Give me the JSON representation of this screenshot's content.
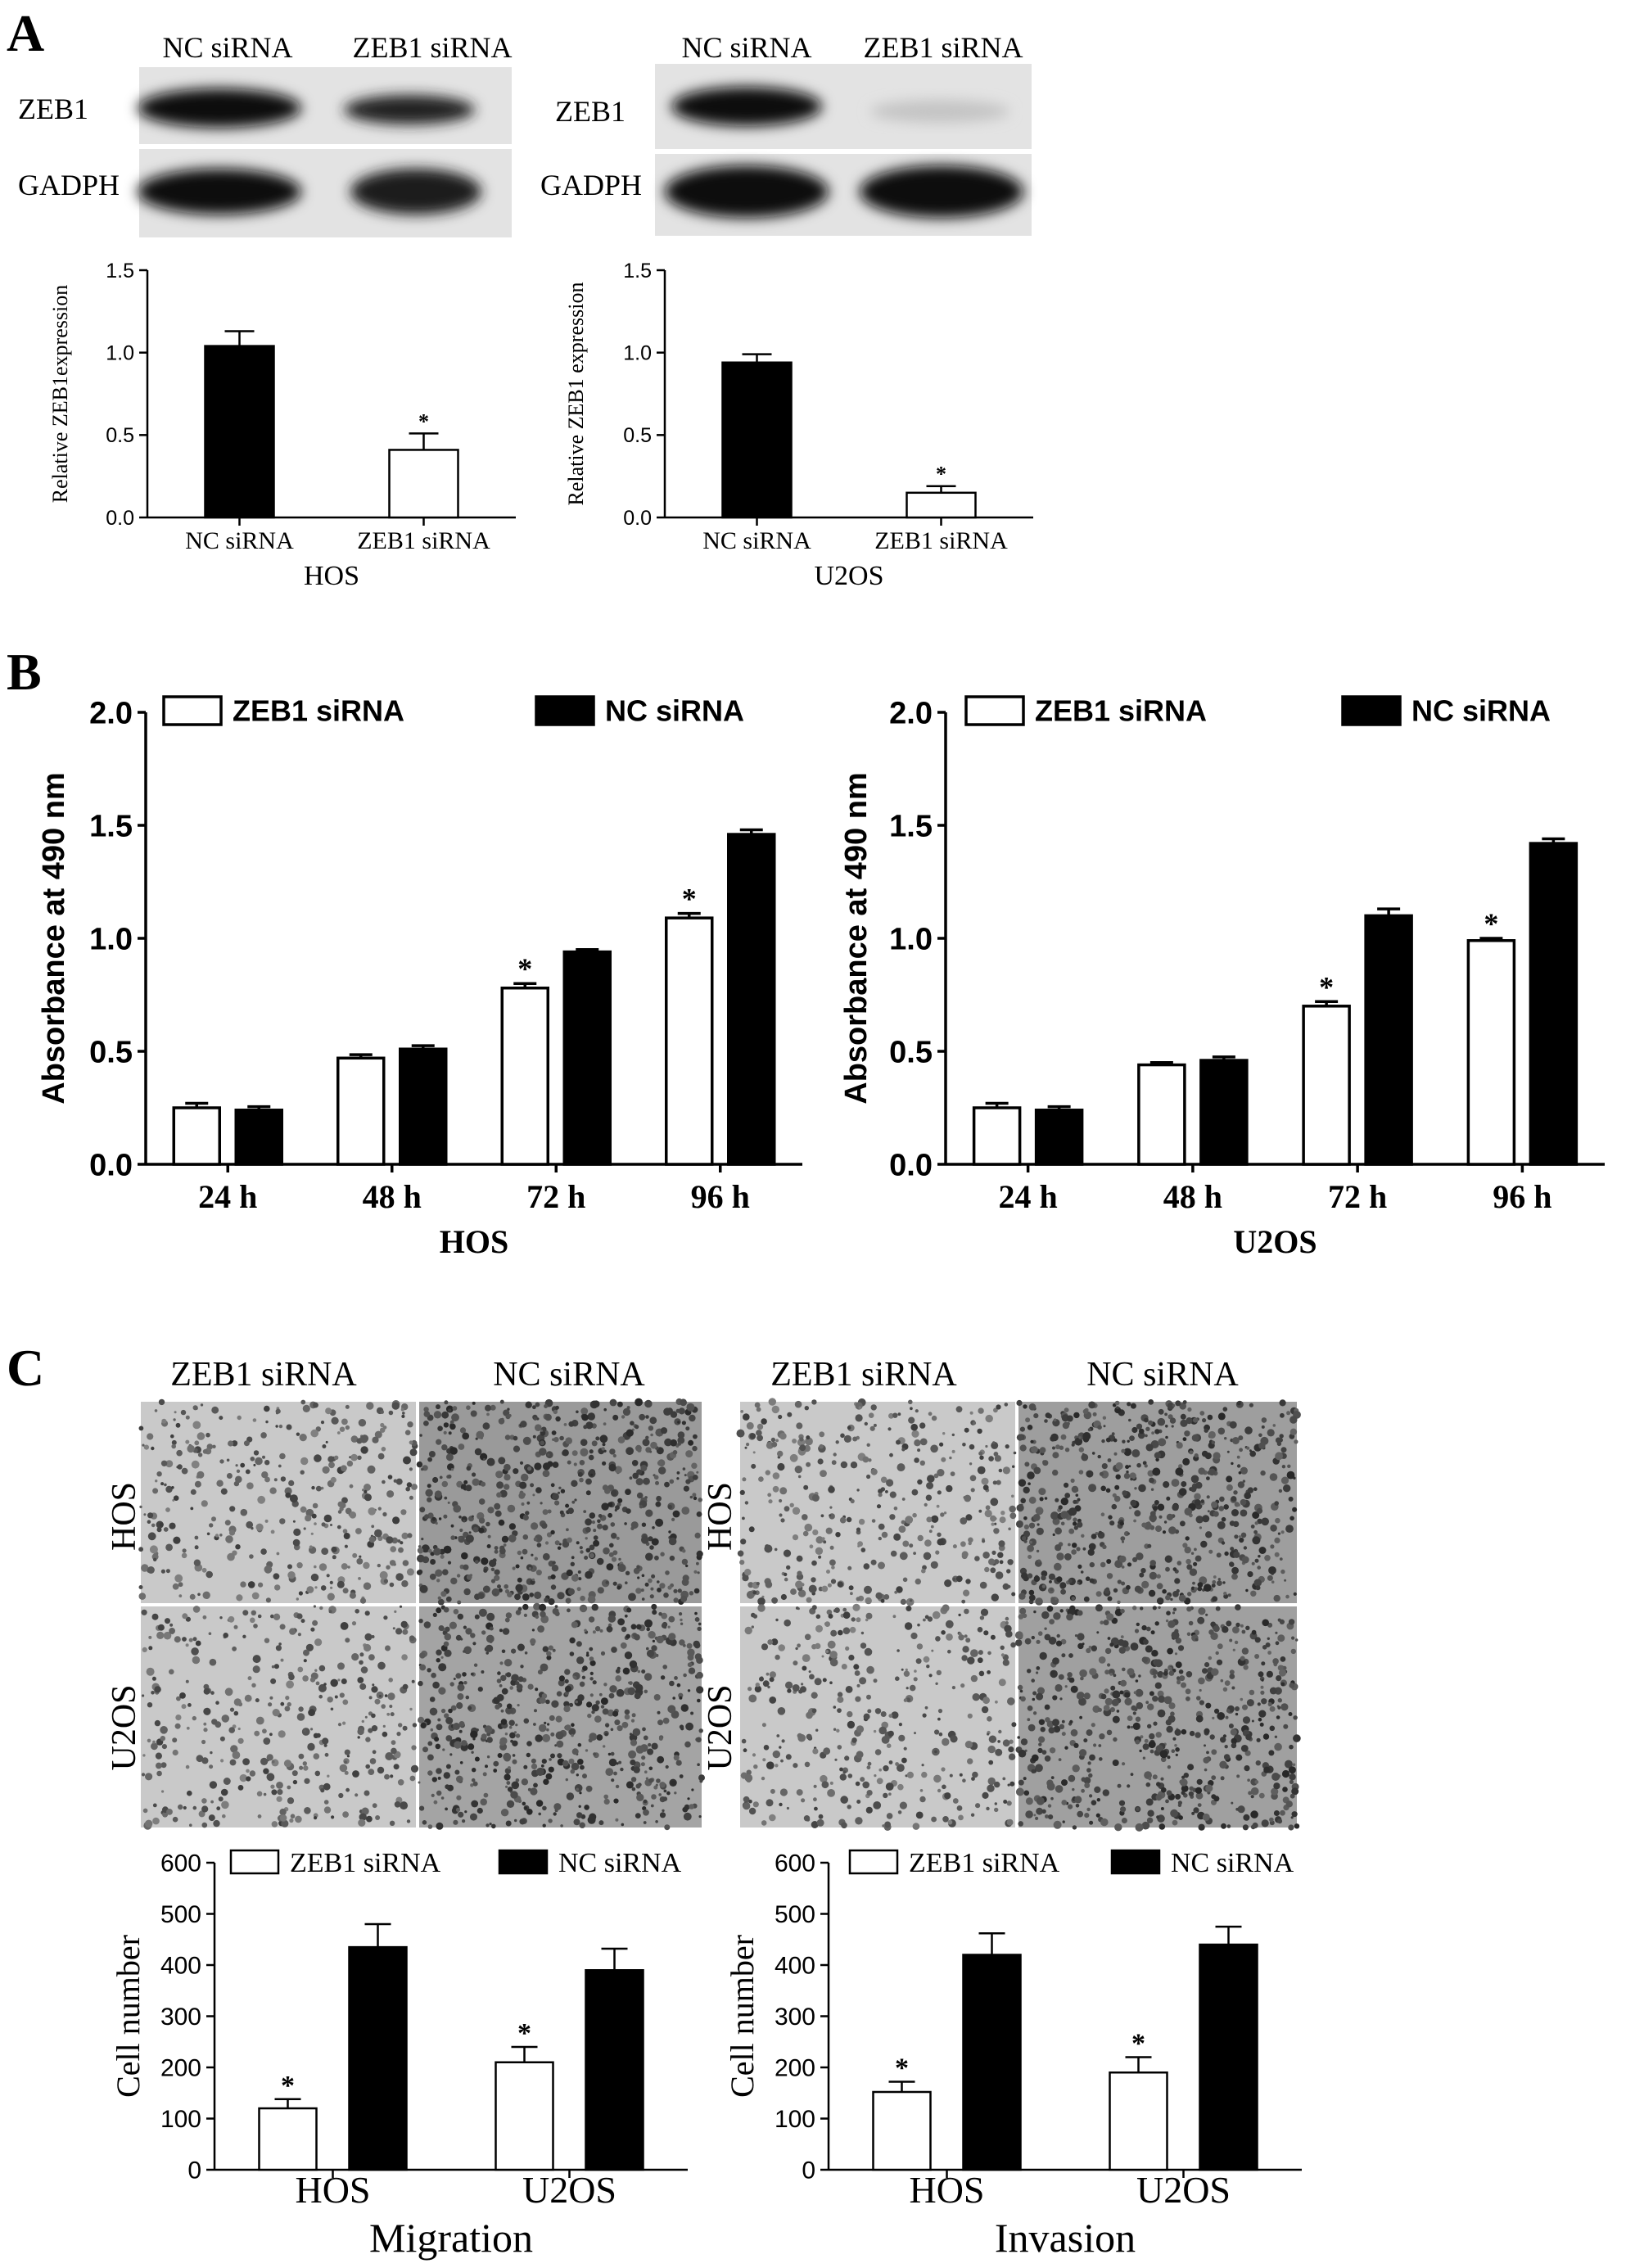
{
  "panel_letters": [
    "A",
    "B",
    "C"
  ],
  "blots": {
    "lanes": [
      "NC siRNA",
      "ZEB1 siRNA"
    ],
    "rows": [
      "ZEB1",
      "GADPH"
    ],
    "cells": [
      "HOS",
      "U2OS"
    ]
  },
  "micrographs": {
    "columns": [
      "ZEB1 siRNA",
      "NC siRNA"
    ],
    "rows": [
      "HOS",
      "U2OS"
    ]
  },
  "chart_data": [
    {
      "id": "A1",
      "type": "bar",
      "categories": [
        "NC siRNA",
        "ZEB1 siRNA"
      ],
      "values": [
        1.04,
        0.41
      ],
      "errors": [
        0.09,
        0.1
      ],
      "fills": [
        "#000000",
        "#ffffff"
      ],
      "sig": [
        "",
        "*"
      ],
      "xlabel": "HOS",
      "ylabel": "Relative ZEB1expression",
      "ylim": [
        0,
        1.5
      ],
      "yticks": [
        "0.0",
        "0.5",
        "1.0",
        "1.5"
      ]
    },
    {
      "id": "A2",
      "type": "bar",
      "categories": [
        "NC siRNA",
        "ZEB1 siRNA"
      ],
      "values": [
        0.94,
        0.15
      ],
      "errors": [
        0.05,
        0.04
      ],
      "fills": [
        "#000000",
        "#ffffff"
      ],
      "sig": [
        "",
        "*"
      ],
      "xlabel": "U2OS",
      "ylabel": "Relative ZEB1 expression",
      "ylim": [
        0,
        1.5
      ],
      "yticks": [
        "0.0",
        "0.5",
        "1.0",
        "1.5"
      ]
    },
    {
      "id": "B1",
      "type": "bar",
      "categories": [
        "24 h",
        "48 h",
        "72 h",
        "96 h"
      ],
      "series": [
        {
          "name": "ZEB1 siRNA",
          "fill": "#ffffff",
          "values": [
            0.25,
            0.47,
            0.78,
            1.09
          ],
          "errors": [
            0.02,
            0.015,
            0.02,
            0.02
          ],
          "sig": [
            "",
            "",
            "*",
            "*"
          ]
        },
        {
          "name": "NC siRNA",
          "fill": "#000000",
          "values": [
            0.24,
            0.51,
            0.94,
            1.46
          ],
          "errors": [
            0.015,
            0.015,
            0.01,
            0.02
          ],
          "sig": [
            "",
            "",
            "",
            ""
          ]
        }
      ],
      "xlabel": "HOS",
      "ylabel": "Absorbance at 490 nm",
      "ylim": [
        0,
        2.0
      ],
      "yticks": [
        "0.0",
        "0.5",
        "1.0",
        "1.5",
        "2.0"
      ],
      "legend": "top"
    },
    {
      "id": "B2",
      "type": "bar",
      "categories": [
        "24 h",
        "48 h",
        "72 h",
        "96 h"
      ],
      "series": [
        {
          "name": "ZEB1 siRNA",
          "fill": "#ffffff",
          "values": [
            0.25,
            0.44,
            0.7,
            0.99
          ],
          "errors": [
            0.02,
            0.01,
            0.02,
            0.01
          ],
          "sig": [
            "",
            "",
            "*",
            "*"
          ]
        },
        {
          "name": "NC siRNA",
          "fill": "#000000",
          "values": [
            0.24,
            0.46,
            1.1,
            1.42
          ],
          "errors": [
            0.015,
            0.015,
            0.03,
            0.02
          ],
          "sig": [
            "",
            "",
            "",
            ""
          ]
        }
      ],
      "xlabel": "U2OS",
      "ylabel": "Absorbance at 490 nm",
      "ylim": [
        0,
        2.0
      ],
      "yticks": [
        "0.0",
        "0.5",
        "1.0",
        "1.5",
        "2.0"
      ],
      "legend": "top"
    },
    {
      "id": "C1",
      "type": "bar",
      "categories": [
        "HOS",
        "U2OS"
      ],
      "series": [
        {
          "name": "ZEB1 siRNA",
          "fill": "#ffffff",
          "values": [
            120,
            210
          ],
          "errors": [
            18,
            30
          ],
          "sig": [
            "*",
            "*"
          ]
        },
        {
          "name": "NC siRNA",
          "fill": "#000000",
          "values": [
            435,
            390
          ],
          "errors": [
            45,
            42
          ],
          "sig": [
            "",
            ""
          ]
        }
      ],
      "xlabel": "Migration",
      "ylabel": "Cell number",
      "ylim": [
        0,
        600
      ],
      "yticks": [
        "0",
        "100",
        "200",
        "300",
        "400",
        "500",
        "600"
      ],
      "legend": "top"
    },
    {
      "id": "C2",
      "type": "bar",
      "categories": [
        "HOS",
        "U2OS"
      ],
      "series": [
        {
          "name": "ZEB1 siRNA",
          "fill": "#ffffff",
          "values": [
            152,
            190
          ],
          "errors": [
            20,
            30
          ],
          "sig": [
            "*",
            "*"
          ]
        },
        {
          "name": "NC siRNA",
          "fill": "#000000",
          "values": [
            420,
            440
          ],
          "errors": [
            42,
            35
          ],
          "sig": [
            "",
            ""
          ]
        }
      ],
      "xlabel": "Invasion",
      "ylabel": "Cell number",
      "ylim": [
        0,
        600
      ],
      "yticks": [
        "0",
        "100",
        "200",
        "300",
        "400",
        "500",
        "600"
      ],
      "legend": "top"
    }
  ]
}
